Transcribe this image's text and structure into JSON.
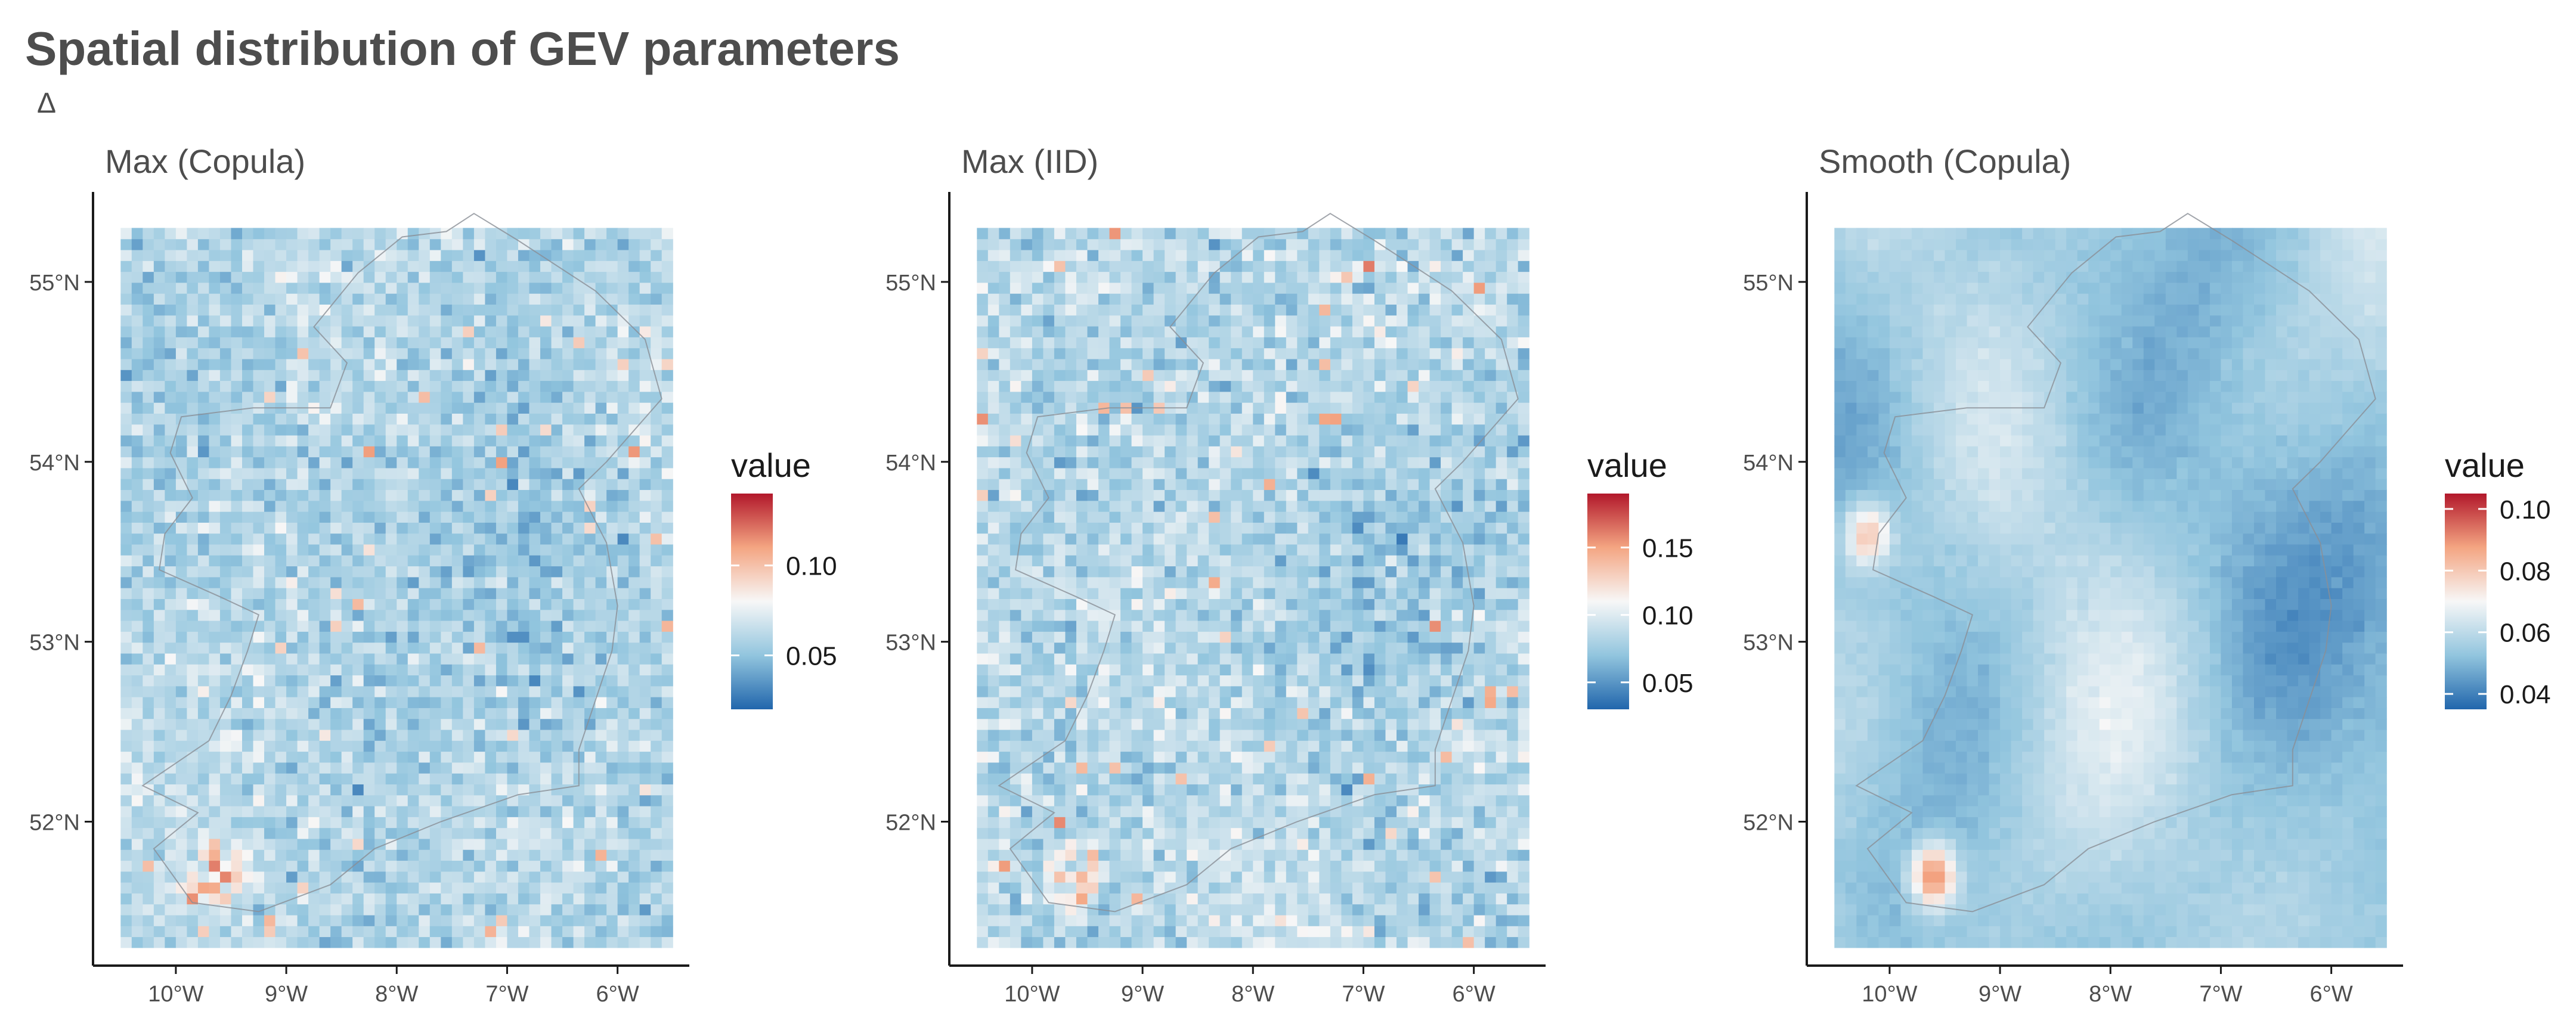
{
  "title": "Spatial distribution of GEV parameters",
  "subtitle": "Δ",
  "colors": {
    "low": "#2166ac",
    "mid": "#f7f7f7",
    "high": "#b2182b",
    "country": "#8a8f96",
    "axis": "#1a1a1a",
    "tick_text": "#4d4d4d"
  },
  "chart_data": [
    {
      "type": "heatmap",
      "title": "Max (Copula)",
      "xlabel": "",
      "ylabel": "",
      "x_ticks": [
        "10°W",
        "9°W",
        "8°W",
        "7°W",
        "6°W"
      ],
      "x_tick_values": [
        -10,
        -9,
        -8,
        -7,
        -6
      ],
      "y_ticks": [
        "52°N",
        "53°N",
        "54°N",
        "55°N"
      ],
      "y_tick_values": [
        52,
        53,
        54,
        55
      ],
      "xlim": [
        -10.75,
        -5.35
      ],
      "ylim": [
        51.2,
        55.5
      ],
      "grid_extent": {
        "lon": [
          -10.5,
          -5.5
        ],
        "lat": [
          51.3,
          55.3
        ]
      },
      "grid_size": [
        50,
        66
      ],
      "legend_title": "value",
      "legend_breaks": [
        0.05,
        0.1
      ],
      "legend_labels": [
        "0.05",
        "0.10"
      ],
      "legend_range": [
        0.02,
        0.14
      ],
      "value_mean": 0.06,
      "value_sd": 0.012,
      "pattern": "noisy",
      "hotspots": [
        {
          "lon": -9.6,
          "lat": 51.7,
          "value": 0.12
        }
      ]
    },
    {
      "type": "heatmap",
      "title": "Max (IID)",
      "xlabel": "",
      "ylabel": "",
      "x_ticks": [
        "10°W",
        "9°W",
        "8°W",
        "7°W",
        "6°W"
      ],
      "x_tick_values": [
        -10,
        -9,
        -8,
        -7,
        -6
      ],
      "y_ticks": [
        "52°N",
        "53°N",
        "54°N",
        "55°N"
      ],
      "y_tick_values": [
        52,
        53,
        54,
        55
      ],
      "xlim": [
        -10.75,
        -5.35
      ],
      "ylim": [
        51.2,
        55.5
      ],
      "grid_extent": {
        "lon": [
          -10.5,
          -5.5
        ],
        "lat": [
          51.3,
          55.3
        ]
      },
      "grid_size": [
        50,
        66
      ],
      "legend_title": "value",
      "legend_breaks": [
        0.05,
        0.1,
        0.15
      ],
      "legend_labels": [
        "0.05",
        "0.10",
        "0.15"
      ],
      "legend_range": [
        0.03,
        0.19
      ],
      "value_mean": 0.085,
      "value_sd": 0.017,
      "pattern": "noisy",
      "hotspots": [
        {
          "lon": -9.6,
          "lat": 51.7,
          "value": 0.17
        }
      ]
    },
    {
      "type": "heatmap",
      "title": "Smooth (Copula)",
      "xlabel": "",
      "ylabel": "",
      "x_ticks": [
        "10°W",
        "9°W",
        "8°W",
        "7°W",
        "6°W"
      ],
      "x_tick_values": [
        -10,
        -9,
        -8,
        -7,
        -6
      ],
      "y_ticks": [
        "52°N",
        "53°N",
        "54°N",
        "55°N"
      ],
      "y_tick_values": [
        52,
        53,
        54,
        55
      ],
      "xlim": [
        -10.75,
        -5.35
      ],
      "ylim": [
        51.2,
        55.5
      ],
      "grid_extent": {
        "lon": [
          -10.5,
          -5.5
        ],
        "lat": [
          51.3,
          55.3
        ]
      },
      "grid_size": [
        50,
        66
      ],
      "legend_title": "value",
      "legend_breaks": [
        0.04,
        0.06,
        0.08,
        0.1
      ],
      "legend_labels": [
        "0.04",
        "0.06",
        "0.08",
        "0.10"
      ],
      "legend_range": [
        0.035,
        0.105
      ],
      "value_mean": 0.056,
      "value_sd": 0.009,
      "pattern": "smooth",
      "hotspots": [
        {
          "lon": -9.6,
          "lat": 51.7,
          "value": 0.095
        },
        {
          "lon": -10.2,
          "lat": 53.6,
          "value": 0.085
        }
      ]
    }
  ]
}
